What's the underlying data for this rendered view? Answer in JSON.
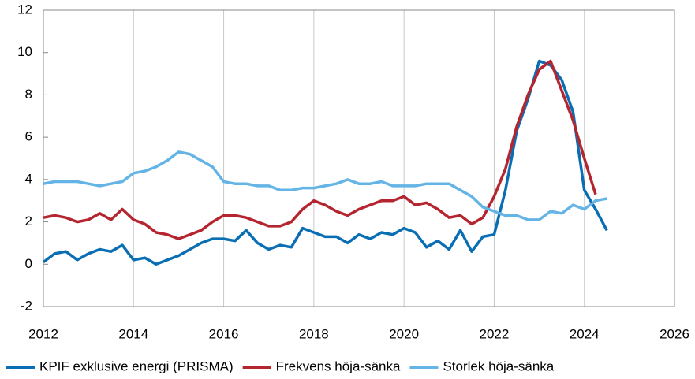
{
  "chart_data": {
    "type": "line",
    "x": [
      2012,
      2012.25,
      2012.5,
      2012.75,
      2013,
      2013.25,
      2013.5,
      2013.75,
      2014,
      2014.25,
      2014.5,
      2014.75,
      2015,
      2015.25,
      2015.5,
      2015.75,
      2016,
      2016.25,
      2016.5,
      2016.75,
      2017,
      2017.25,
      2017.5,
      2017.75,
      2018,
      2018.25,
      2018.5,
      2018.75,
      2019,
      2019.25,
      2019.5,
      2019.75,
      2020,
      2020.25,
      2020.5,
      2020.75,
      2021,
      2021.25,
      2021.5,
      2021.75,
      2022,
      2022.25,
      2022.5,
      2022.75,
      2023,
      2023.25,
      2023.5,
      2023.75,
      2024,
      2024.25,
      2024.5
    ],
    "series": [
      {
        "name": "KPIF exklusive energi (PRISMA)",
        "color": "#0a6eb4",
        "values": [
          0.1,
          0.5,
          0.6,
          0.2,
          0.5,
          0.7,
          0.6,
          0.9,
          0.2,
          0.3,
          0.0,
          0.2,
          0.4,
          0.7,
          1.0,
          1.2,
          1.2,
          1.1,
          1.6,
          1.0,
          0.7,
          0.9,
          0.8,
          1.7,
          1.5,
          1.3,
          1.3,
          1.0,
          1.4,
          1.2,
          1.5,
          1.4,
          1.7,
          1.5,
          0.8,
          1.1,
          0.7,
          1.6,
          0.6,
          1.3,
          1.4,
          3.5,
          6.3,
          7.8,
          9.6,
          9.4,
          8.7,
          7.2,
          3.5,
          2.6,
          1.6
        ]
      },
      {
        "name": "Frekvens höja-sänka",
        "color": "#b5252f",
        "values": [
          2.2,
          2.3,
          2.2,
          2.0,
          2.1,
          2.4,
          2.1,
          2.6,
          2.1,
          1.9,
          1.5,
          1.4,
          1.2,
          1.4,
          1.6,
          2.0,
          2.3,
          2.3,
          2.2,
          2.0,
          1.8,
          1.8,
          2.0,
          2.6,
          3.0,
          2.8,
          2.5,
          2.3,
          2.6,
          2.8,
          3.0,
          3.0,
          3.2,
          2.8,
          2.9,
          2.6,
          2.2,
          2.3,
          1.9,
          2.2,
          3.2,
          4.5,
          6.5,
          8.0,
          9.2,
          9.6,
          8.2,
          6.8,
          5.0,
          3.3,
          null
        ]
      },
      {
        "name": "Storlek höja-sänka",
        "color": "#64b4e6",
        "values": [
          3.8,
          3.9,
          3.9,
          3.9,
          3.8,
          3.7,
          3.8,
          3.9,
          4.3,
          4.4,
          4.6,
          4.9,
          5.3,
          5.2,
          4.9,
          4.6,
          3.9,
          3.8,
          3.8,
          3.7,
          3.7,
          3.5,
          3.5,
          3.6,
          3.6,
          3.7,
          3.8,
          4.0,
          3.8,
          3.8,
          3.9,
          3.7,
          3.7,
          3.7,
          3.8,
          3.8,
          3.8,
          3.5,
          3.2,
          2.7,
          2.5,
          2.3,
          2.3,
          2.1,
          2.1,
          2.5,
          2.4,
          2.8,
          2.6,
          3.0,
          3.1
        ]
      }
    ],
    "xlim": [
      2012,
      2026
    ],
    "xticks": [
      2012,
      2014,
      2016,
      2018,
      2020,
      2022,
      2024,
      2026
    ],
    "ylim": [
      -2,
      12
    ],
    "yticks": [
      -2,
      0,
      2,
      4,
      6,
      8,
      10,
      12
    ],
    "grid": "x"
  }
}
